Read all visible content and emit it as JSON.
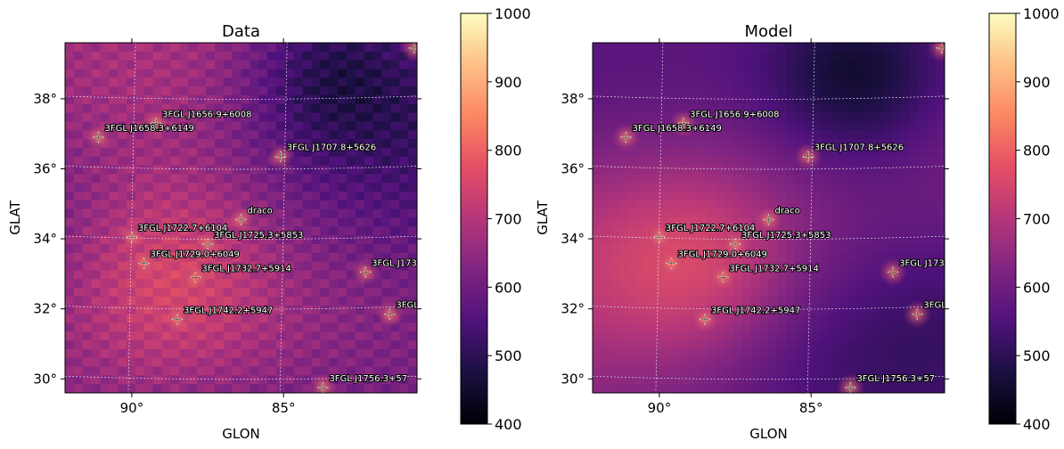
{
  "chart_data": [
    {
      "type": "heatmap",
      "title": "Data",
      "xlabel": "GLON",
      "ylabel": "GLAT",
      "x_range_deg": [
        92.2,
        80.6
      ],
      "y_range_deg": [
        29.6,
        39.6
      ],
      "x_ticks": [
        {
          "value": 90,
          "label": "90°"
        },
        {
          "value": 85,
          "label": "85°"
        }
      ],
      "y_ticks": [
        {
          "value": 30,
          "label": "30°"
        },
        {
          "value": 32,
          "label": "32°"
        },
        {
          "value": 34,
          "label": "34°"
        },
        {
          "value": 36,
          "label": "36°"
        },
        {
          "value": 38,
          "label": "38°"
        }
      ],
      "colorbar": {
        "min": 400,
        "max": 1000,
        "ticks": [
          "400",
          "500",
          "600",
          "700",
          "800",
          "900",
          "1000"
        ],
        "colormap": "magma"
      },
      "grid": true
    },
    {
      "type": "heatmap",
      "title": "Model",
      "xlabel": "GLON",
      "ylabel": "GLAT",
      "x_range_deg": [
        92.2,
        80.6
      ],
      "y_range_deg": [
        29.6,
        39.6
      ],
      "x_ticks": [
        {
          "value": 90,
          "label": "90°"
        },
        {
          "value": 85,
          "label": "85°"
        }
      ],
      "y_ticks": [
        {
          "value": 30,
          "label": "30°"
        },
        {
          "value": 32,
          "label": "32°"
        },
        {
          "value": 34,
          "label": "34°"
        },
        {
          "value": 36,
          "label": "36°"
        },
        {
          "value": 38,
          "label": "38°"
        }
      ],
      "colorbar": {
        "min": 400,
        "max": 1000,
        "ticks": [
          "400",
          "500",
          "600",
          "700",
          "800",
          "900",
          "1000"
        ],
        "colormap": "magma"
      },
      "grid": true
    }
  ],
  "sources": [
    {
      "name": "3FGL J1656.9+6008",
      "glon": 89.2,
      "glat": 37.3
    },
    {
      "name": "3FGL J1658.3+6149",
      "glon": 91.1,
      "glat": 36.9
    },
    {
      "name": "3FGL J1707.8+5626",
      "glon": 85.1,
      "glat": 36.35
    },
    {
      "name": "draco",
      "glon": 86.4,
      "glat": 34.55
    },
    {
      "name": "3FGL J1722.7+6104",
      "glon": 90.0,
      "glat": 34.05
    },
    {
      "name": "3FGL J1725.3+5853",
      "glon": 87.5,
      "glat": 33.85
    },
    {
      "name": "3FGL J1729.0+6049",
      "glon": 89.6,
      "glat": 33.3
    },
    {
      "name": "3FGL J1732.7+5914",
      "glon": 87.9,
      "glat": 32.9
    },
    {
      "name": "3FGL J1733",
      "glon": 82.3,
      "glat": 33.05
    },
    {
      "name": "3FGL",
      "glon": 81.5,
      "glat": 31.85
    },
    {
      "name": "3FGL J1742.2+5947",
      "glon": 88.5,
      "glat": 31.7
    },
    {
      "name": "3FGL J1756.3+57",
      "glon": 83.7,
      "glat": 29.75
    },
    {
      "name": "",
      "glon": 80.7,
      "glat": 39.45
    }
  ],
  "colors": {
    "grid": "#d8d8e8",
    "marker": "#ffffff"
  }
}
